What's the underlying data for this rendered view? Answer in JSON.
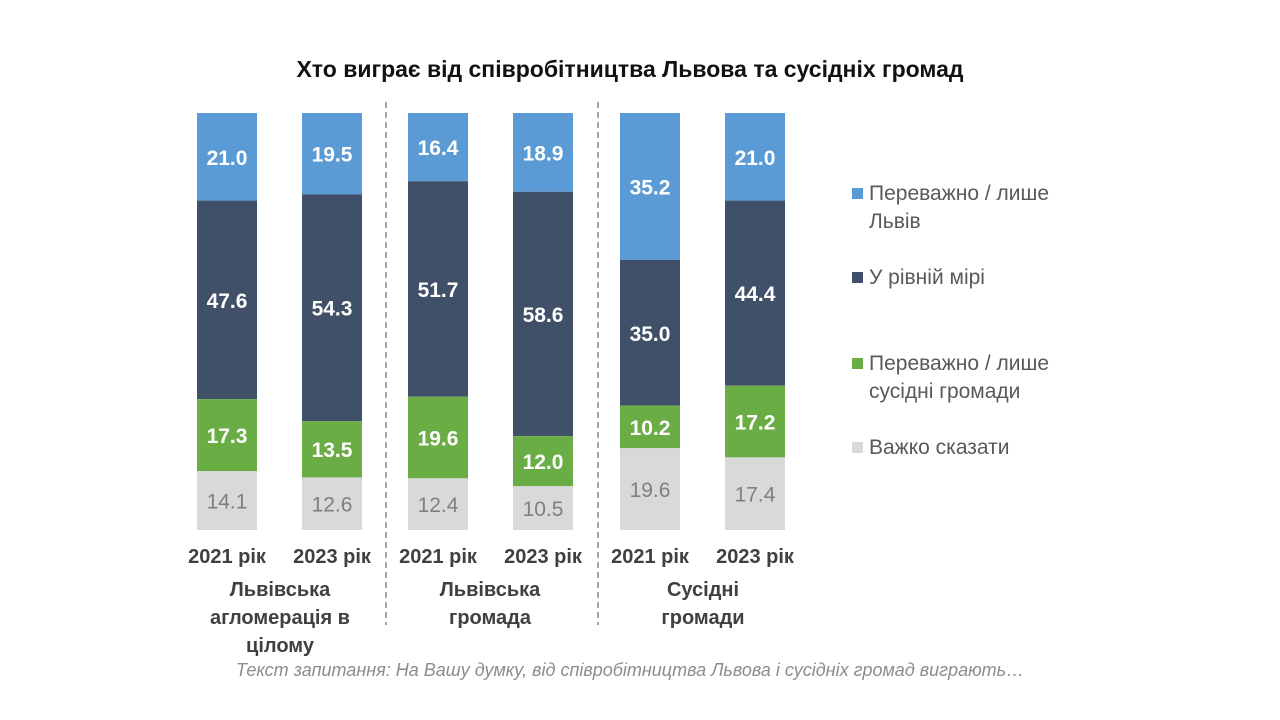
{
  "chart_data": {
    "type": "bar",
    "stacked": true,
    "title": "Хто виграє від співробітництва Львова та сусідніх громад",
    "xlabel": "",
    "ylabel": "",
    "ylim": [
      0,
      100
    ],
    "grid": false,
    "legend_position": "right",
    "categories": [
      "2021 рік",
      "2023 рік",
      "2021 рік",
      "2023 рік",
      "2021 рік",
      "2023 рік"
    ],
    "groups": [
      {
        "label": "Львівська агломерація в цілому",
        "lines": [
          "Львівська",
          "агломерація в",
          "цілому"
        ]
      },
      {
        "label": "Львівська громада",
        "lines": [
          "Львівська",
          "громада"
        ]
      },
      {
        "label": "Сусідні громади",
        "lines": [
          "Сусідні",
          "громади"
        ]
      }
    ],
    "series": [
      {
        "name": "Переважно / лише Львів",
        "legend_lines": [
          "Переважно / лише",
          "Львів"
        ],
        "color": "#5b9bd5",
        "label_color": "#ffffff",
        "values": [
          21.0,
          19.5,
          16.4,
          18.9,
          35.2,
          21.0
        ],
        "labels": [
          "21.0",
          "19.5",
          "16.4",
          "18.9",
          "35.2",
          "21.0"
        ]
      },
      {
        "name": "У рівній мірі",
        "legend_lines": [
          "У рівній мірі"
        ],
        "color": "#3f5068",
        "label_color": "#ffffff",
        "values": [
          47.6,
          54.3,
          51.7,
          58.6,
          35.0,
          44.4
        ],
        "labels": [
          "47.6",
          "54.3",
          "51.7",
          "58.6",
          "35.0",
          "44.4"
        ]
      },
      {
        "name": "Переважно / лише сусідні громади",
        "legend_lines": [
          "Переважно / лише",
          "сусідні громади"
        ],
        "color": "#6aad45",
        "label_color": "#ffffff",
        "values": [
          17.3,
          13.5,
          19.6,
          12.0,
          10.2,
          17.2
        ],
        "labels": [
          "17.3",
          "13.5",
          "19.6",
          "12.0",
          "10.2",
          "17.2"
        ]
      },
      {
        "name": "Важко сказати",
        "legend_lines": [
          "Важко сказати"
        ],
        "color": "#d9d9d9",
        "label_color": "#7f7f7f",
        "values": [
          14.1,
          12.6,
          12.4,
          10.5,
          19.6,
          17.4
        ],
        "labels": [
          "14.1",
          "12.6",
          "12.4",
          "10.5",
          "19.6",
          "17.4"
        ]
      }
    ],
    "footnote": "Текст запитання: На Вашу думку, від співробітництва Львова і сусідніх громад виграють…"
  }
}
